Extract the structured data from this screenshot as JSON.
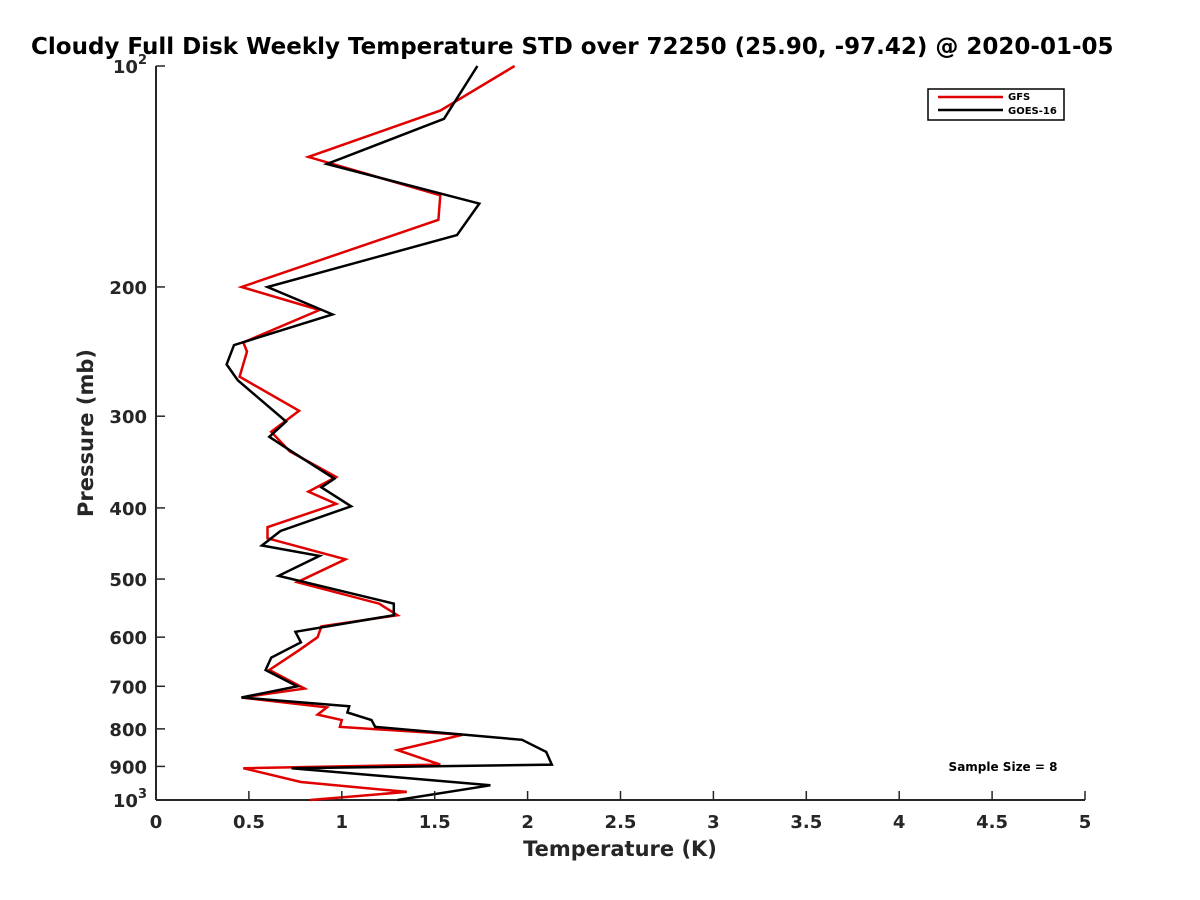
{
  "chart_data": {
    "type": "line",
    "title": "Cloudy Full Disk Weekly Temperature STD over 72250 (25.90, -97.42) @ 2020-01-05",
    "xlabel": "Temperature (K)",
    "ylabel": "Pressure (mb)",
    "xlim": [
      0,
      5
    ],
    "ylim": [
      100,
      1000
    ],
    "y_scale": "log",
    "y_reversed": true,
    "grid": false,
    "legend_position": "top-right",
    "xticks": [
      0,
      0.5,
      1,
      1.5,
      2,
      2.5,
      3,
      3.5,
      4,
      4.5,
      5
    ],
    "xtick_labels": [
      "0",
      "0.5",
      "1",
      "1.5",
      "2",
      "2.5",
      "3",
      "3.5",
      "4",
      "4.5",
      "5"
    ],
    "yticks": [
      {
        "value": 100,
        "base": "10",
        "exp": "2"
      },
      {
        "value": 200,
        "label": "200"
      },
      {
        "value": 300,
        "label": "300"
      },
      {
        "value": 400,
        "label": "400"
      },
      {
        "value": 500,
        "label": "500"
      },
      {
        "value": 600,
        "label": "600"
      },
      {
        "value": 700,
        "label": "700"
      },
      {
        "value": 800,
        "label": "800"
      },
      {
        "value": 900,
        "label": "900"
      },
      {
        "value": 1000,
        "base": "10",
        "exp": "3"
      }
    ],
    "annotation": "Sample Size = 8",
    "series": [
      {
        "name": "GFS",
        "color": "#e00000",
        "points": [
          [
            1.93,
            100
          ],
          [
            1.53,
            115
          ],
          [
            0.82,
            133
          ],
          [
            1.53,
            150
          ],
          [
            1.52,
            162
          ],
          [
            0.46,
            200
          ],
          [
            0.88,
            215
          ],
          [
            0.47,
            238
          ],
          [
            0.49,
            245
          ],
          [
            0.45,
            265
          ],
          [
            0.77,
            295
          ],
          [
            0.62,
            315
          ],
          [
            0.72,
            335
          ],
          [
            0.97,
            363
          ],
          [
            0.82,
            380
          ],
          [
            0.97,
            395
          ],
          [
            0.6,
            425
          ],
          [
            0.6,
            440
          ],
          [
            1.02,
            470
          ],
          [
            0.76,
            505
          ],
          [
            1.2,
            540
          ],
          [
            1.3,
            560
          ],
          [
            0.89,
            580
          ],
          [
            0.87,
            600
          ],
          [
            0.77,
            625
          ],
          [
            0.61,
            665
          ],
          [
            0.8,
            705
          ],
          [
            0.46,
            725
          ],
          [
            0.92,
            748
          ],
          [
            0.87,
            765
          ],
          [
            1.0,
            778
          ],
          [
            0.99,
            795
          ],
          [
            1.65,
            815
          ],
          [
            1.3,
            855
          ],
          [
            1.53,
            895
          ],
          [
            0.47,
            905
          ],
          [
            0.78,
            945
          ],
          [
            1.35,
            975
          ],
          [
            0.83,
            1000
          ]
        ]
      },
      {
        "name": "GOES-16",
        "color": "#000000",
        "points": [
          [
            1.73,
            100
          ],
          [
            1.55,
            118
          ],
          [
            0.92,
            136
          ],
          [
            1.74,
            154
          ],
          [
            1.62,
            170
          ],
          [
            0.6,
            200
          ],
          [
            0.95,
            218
          ],
          [
            0.42,
            240
          ],
          [
            0.38,
            255
          ],
          [
            0.44,
            268
          ],
          [
            0.7,
            305
          ],
          [
            0.61,
            320
          ],
          [
            0.73,
            335
          ],
          [
            0.96,
            365
          ],
          [
            0.89,
            375
          ],
          [
            1.05,
            398
          ],
          [
            0.67,
            430
          ],
          [
            0.57,
            450
          ],
          [
            0.88,
            465
          ],
          [
            0.66,
            495
          ],
          [
            1.28,
            540
          ],
          [
            1.28,
            560
          ],
          [
            0.75,
            590
          ],
          [
            0.78,
            610
          ],
          [
            0.62,
            640
          ],
          [
            0.59,
            665
          ],
          [
            0.76,
            700
          ],
          [
            0.46,
            725
          ],
          [
            1.04,
            745
          ],
          [
            1.03,
            760
          ],
          [
            1.16,
            778
          ],
          [
            1.18,
            795
          ],
          [
            1.97,
            828
          ],
          [
            2.1,
            860
          ],
          [
            2.13,
            895
          ],
          [
            0.73,
            905
          ],
          [
            1.8,
            955
          ],
          [
            1.3,
            1000
          ]
        ]
      }
    ]
  }
}
